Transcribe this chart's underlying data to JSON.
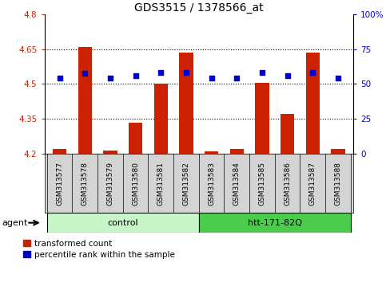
{
  "title": "GDS3515 / 1378566_at",
  "samples": [
    "GSM313577",
    "GSM313578",
    "GSM313579",
    "GSM313580",
    "GSM313581",
    "GSM313582",
    "GSM313583",
    "GSM313584",
    "GSM313585",
    "GSM313586",
    "GSM313587",
    "GSM313588"
  ],
  "red_values": [
    4.22,
    4.66,
    4.215,
    4.335,
    4.5,
    4.635,
    4.21,
    4.22,
    4.505,
    4.37,
    4.635,
    4.22
  ],
  "blue_values": [
    4.525,
    4.545,
    4.525,
    4.535,
    4.548,
    4.548,
    4.525,
    4.525,
    4.548,
    4.535,
    4.548,
    4.525
  ],
  "ymin": 4.2,
  "ymax": 4.8,
  "y_left_ticks": [
    4.2,
    4.35,
    4.5,
    4.65,
    4.8
  ],
  "y_right_ticks": [
    0,
    25,
    50,
    75,
    100
  ],
  "y_right_tick_positions": [
    4.2,
    4.35,
    4.5,
    4.65,
    4.8
  ],
  "dotted_lines": [
    4.35,
    4.5,
    4.65
  ],
  "ctrl_color": "#c8f5c8",
  "htt_color": "#4ccc4c",
  "bar_color": "#cc2200",
  "dot_color": "#0000cc",
  "bar_width": 0.55,
  "tick_color_left": "#cc2200",
  "tick_color_right": "#0000cc",
  "legend_red": "transformed count",
  "legend_blue": "percentile rank within the sample",
  "agent_label": "agent"
}
